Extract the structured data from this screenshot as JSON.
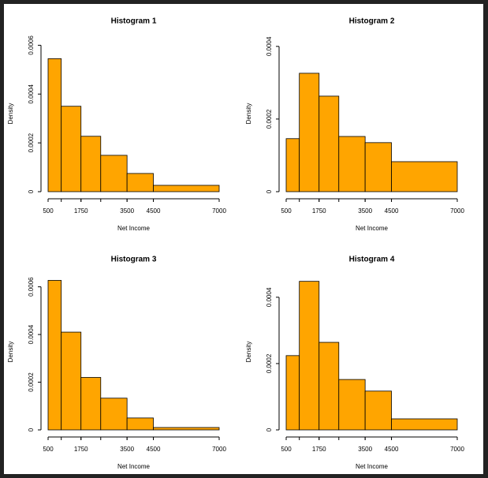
{
  "chart_data": [
    {
      "type": "histogram",
      "title": "Histogram 1",
      "xlabel": "Net Income",
      "ylabel": "Density",
      "color": "#ffa500",
      "bins": [
        500,
        1000,
        1750,
        2500,
        3500,
        4500,
        7000
      ],
      "values": [
        0.000545,
        0.00035,
        0.000227,
        0.000149,
        7.46e-05,
        2.6e-05
      ],
      "xlim": [
        500,
        7000
      ],
      "xticks": [
        500,
        1750,
        3500,
        4500,
        7000
      ],
      "ylim": [
        0,
        0.00064
      ],
      "yticks": [
        0,
        0.0002,
        0.0004,
        0.0006
      ]
    },
    {
      "type": "histogram",
      "title": "Histogram 2",
      "xlabel": "Net Income",
      "ylabel": "Density",
      "color": "#ffa500",
      "bins": [
        500,
        1000,
        1750,
        2500,
        3500,
        4500,
        7000
      ],
      "values": [
        0.000146,
        0.000326,
        0.000263,
        0.000152,
        0.000135,
        8.26e-05
      ],
      "xlim": [
        500,
        7000
      ],
      "xticks": [
        500,
        1750,
        3500,
        4500,
        7000
      ],
      "ylim": [
        0,
        0.00043
      ],
      "yticks": [
        0,
        0.0002,
        0.0004
      ]
    },
    {
      "type": "histogram",
      "title": "Histogram 3",
      "xlabel": "Net Income",
      "ylabel": "Density",
      "color": "#ffa500",
      "bins": [
        500,
        1000,
        1750,
        2500,
        3500,
        4500,
        7000
      ],
      "values": [
        0.000627,
        0.00041,
        0.00022,
        0.000133,
        5e-05,
        1e-05
      ],
      "xlim": [
        500,
        7000
      ],
      "xticks": [
        500,
        1750,
        3500,
        4500,
        7000
      ],
      "ylim": [
        0,
        0.000655
      ],
      "yticks": [
        0,
        0.0002,
        0.0004,
        0.0006
      ]
    },
    {
      "type": "histogram",
      "title": "Histogram 4",
      "xlabel": "Net Income",
      "ylabel": "Density",
      "color": "#ffa500",
      "bins": [
        500,
        1000,
        1750,
        2500,
        3500,
        4500,
        7000
      ],
      "values": [
        0.000224,
        0.000448,
        0.000264,
        0.000152,
        0.000117,
        3.33e-05
      ],
      "xlim": [
        500,
        7000
      ],
      "xticks": [
        500,
        1750,
        3500,
        4500,
        7000
      ],
      "ylim": [
        0,
        0.000471
      ],
      "yticks": [
        0,
        0.0002,
        0.0004
      ]
    }
  ]
}
